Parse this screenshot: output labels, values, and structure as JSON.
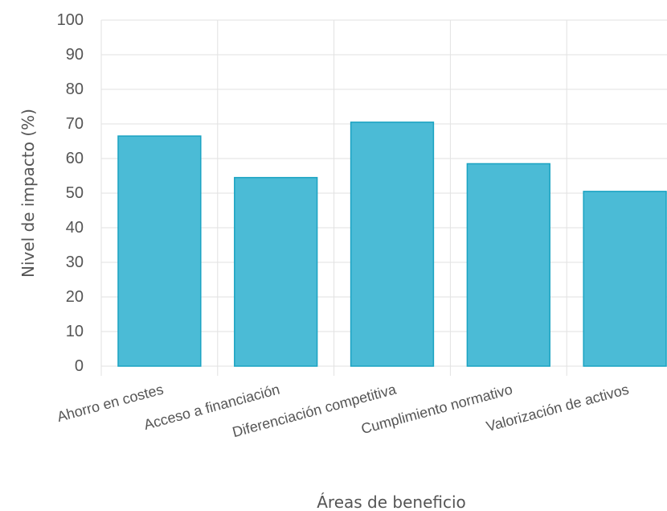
{
  "chart_data": {
    "type": "bar",
    "title": "",
    "xlabel": "Áreas de beneficio",
    "ylabel": "Nivel de impacto (%)",
    "ylim": [
      0,
      100
    ],
    "yticks": [
      0,
      10,
      20,
      30,
      40,
      50,
      60,
      70,
      80,
      90,
      100
    ],
    "grid": true,
    "categories": [
      "Ahorro en costes",
      "Acceso a financiación",
      "Diferenciación competitiva",
      "Cumplimiento normativo",
      "Valorización de activos"
    ],
    "values": [
      66.5,
      54.5,
      70.5,
      58.5,
      50.5
    ],
    "colors": {
      "bar_fill": "#4bbbd6",
      "bar_stroke": "#1aa3c2",
      "grid": "#e2e2e2",
      "text": "#555555"
    }
  }
}
